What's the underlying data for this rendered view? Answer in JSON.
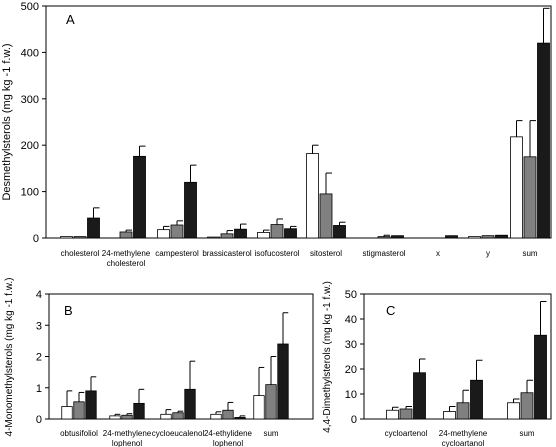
{
  "chart_data": [
    {
      "type": "bar",
      "panel_letter": "A",
      "ylabel": "Desmethylsterols (mg kg -1 f.w.)",
      "ylim": [
        0,
        500
      ],
      "yticks": [
        0,
        100,
        200,
        300,
        400,
        500
      ],
      "categories": [
        "cholesterol",
        "24-methylene cholesterol",
        "campesterol",
        "brassicasterol",
        "isofucosterol",
        "sitosterol",
        "stigmasterol",
        "x",
        "y",
        "sum"
      ],
      "series": [
        {
          "fill": "#ffffff",
          "values": [
            3,
            0,
            18,
            2,
            12,
            182,
            0,
            0,
            3,
            218
          ],
          "errors": [
            0,
            0,
            7,
            0,
            5,
            18,
            0,
            0,
            0,
            35
          ]
        },
        {
          "fill": "#808080",
          "values": [
            3,
            13,
            28,
            9,
            29,
            95,
            3,
            0,
            5,
            175
          ],
          "errors": [
            0,
            4,
            9,
            7,
            12,
            45,
            3,
            0,
            0,
            78
          ]
        },
        {
          "fill": "#1a1a1a",
          "values": [
            43,
            176,
            120,
            19,
            20,
            27,
            5,
            5,
            6,
            420
          ],
          "errors": [
            22,
            22,
            37,
            11,
            5,
            7,
            0,
            0,
            0,
            75
          ]
        }
      ]
    },
    {
      "type": "bar",
      "panel_letter": "B",
      "ylabel": "4-Monomethylsterols (mg kg -1 f.w.)",
      "ylim": [
        0,
        4
      ],
      "yticks": [
        0,
        1,
        2,
        3,
        4
      ],
      "categories": [
        "obtusifoliol",
        "24-methylene lophenol",
        "cycloeucalenol",
        "24-ethylidene lophenol",
        "sum"
      ],
      "series": [
        {
          "fill": "#ffffff",
          "values": [
            0.4,
            0.1,
            0.15,
            0.15,
            0.75
          ],
          "errors": [
            0.5,
            0.05,
            0.15,
            0.08,
            0.9
          ]
        },
        {
          "fill": "#808080",
          "values": [
            0.55,
            0.12,
            0.2,
            0.28,
            1.1
          ],
          "errors": [
            0.3,
            0.05,
            0.05,
            0.25,
            0.9
          ]
        },
        {
          "fill": "#1a1a1a",
          "values": [
            0.9,
            0.5,
            0.95,
            0.05,
            2.4
          ],
          "errors": [
            0.45,
            0.45,
            0.9,
            0.05,
            1.0
          ]
        }
      ]
    },
    {
      "type": "bar",
      "panel_letter": "C",
      "ylabel": "4,4-Dimethylsterols (mg kg -1 f.w.)",
      "ylim": [
        0,
        50
      ],
      "yticks": [
        0,
        10,
        20,
        30,
        40,
        50
      ],
      "categories": [
        "cycloartenol",
        "24-methylene cycloartanol",
        "sum"
      ],
      "series": [
        {
          "fill": "#ffffff",
          "values": [
            3.5,
            3,
            6.5
          ],
          "errors": [
            1.2,
            2,
            1.5
          ]
        },
        {
          "fill": "#808080",
          "values": [
            4,
            6.5,
            10.5
          ],
          "errors": [
            1,
            5,
            5
          ]
        },
        {
          "fill": "#1a1a1a",
          "values": [
            18.5,
            15.5,
            33.5
          ],
          "errors": [
            5.5,
            8,
            13.5
          ]
        }
      ]
    }
  ]
}
